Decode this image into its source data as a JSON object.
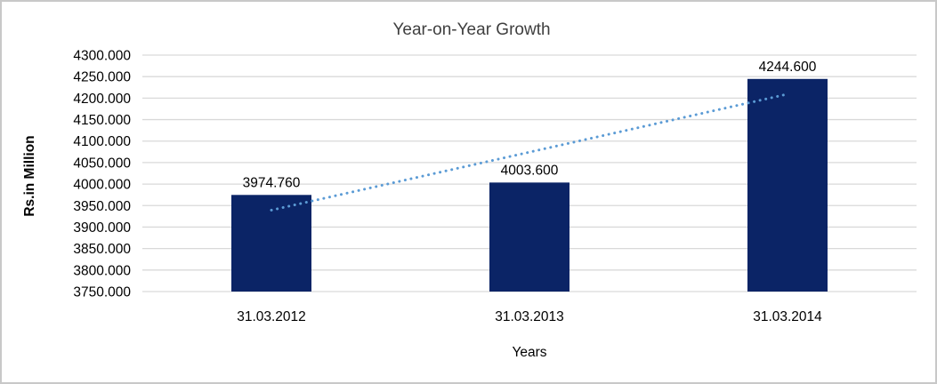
{
  "chart_data": {
    "type": "bar",
    "title": "Year-on-Year Growth",
    "categories": [
      "31.03.2012",
      "31.03.2013",
      "31.03.2014"
    ],
    "values": [
      3974.76,
      4003.6,
      4244.6
    ],
    "data_labels": [
      "3974.760",
      "4003.600",
      "4244.600"
    ],
    "xlabel": "Years",
    "ylabel": "Rs.in Million",
    "ylim": [
      3750,
      4300
    ],
    "ytick_step": 50,
    "ytick_labels": [
      "4300.000",
      "4250.000",
      "4200.000",
      "4150.000",
      "4100.000",
      "4050.000",
      "4000.000",
      "3950.000",
      "3900.000",
      "3850.000",
      "3800.000",
      "3750.000"
    ],
    "grid": true,
    "legend": "none",
    "trendline": {
      "type": "linear",
      "style": "dotted",
      "color": "#5B9BD5"
    },
    "colors": {
      "bar": "#0B2466",
      "gridline": "#D9D9D9",
      "tick_text": "#000000",
      "data_label_text": "#000000",
      "title_text": "#3F3F3F",
      "axis_title_text": "#000000",
      "frame_border": "#C8C8C8",
      "background": "#FFFFFF"
    }
  }
}
